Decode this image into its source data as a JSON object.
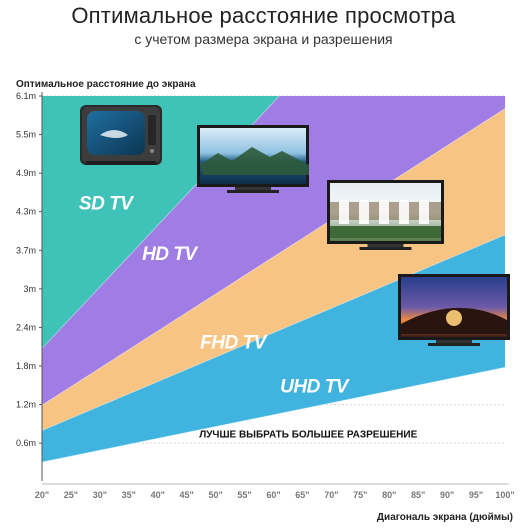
{
  "header": {
    "title": "Оптимальное расстояние просмотра",
    "subtitle": "с учетом размера экрана и разрешения"
  },
  "chart_data": {
    "type": "area",
    "title": "Оптимальное расстояние просмотра",
    "subtitle": "с учетом размера экрана и разрешения",
    "ylabel": "Оптимальное расстояние до экрана",
    "xlabel": "Диагональ экрана (дюймы)",
    "x_ticks": [
      "20\"",
      "25\"",
      "30\"",
      "35\"",
      "40\"",
      "45\"",
      "50\"",
      "55\"",
      "60\"",
      "65\"",
      "70\"",
      "75\"",
      "80\"",
      "85\"",
      "90\"",
      "95\"",
      "100\""
    ],
    "y_ticks": [
      "0.6m",
      "1.2m",
      "1.8m",
      "2.4m",
      "3m",
      "3.7m",
      "4.3m",
      "4.9m",
      "5.5m",
      "6.1m"
    ],
    "xlim": [
      20,
      100
    ],
    "ylim": [
      0,
      6.1
    ],
    "grid": true,
    "boundaries": [
      {
        "name": "bottom",
        "points": [
          [
            20,
            0.3
          ],
          [
            100,
            1.8
          ]
        ]
      },
      {
        "name": "UHD / FHD",
        "points": [
          [
            20,
            0.8
          ],
          [
            100,
            3.9
          ]
        ]
      },
      {
        "name": "FHD / HD",
        "points": [
          [
            20,
            1.2
          ],
          [
            100,
            5.9
          ]
        ]
      },
      {
        "name": "HD / SD",
        "points": [
          [
            20,
            2.1
          ],
          [
            61,
            6.1
          ]
        ]
      }
    ],
    "series": [
      {
        "name": "SD TV",
        "color": "#3fc2b8",
        "label_pos": [
          31,
          4.3
        ]
      },
      {
        "name": "HD TV",
        "color": "#a07de4",
        "label_pos": [
          42,
          3.5
        ]
      },
      {
        "name": "FHD TV",
        "color": "#f8c483",
        "label_pos": [
          53,
          2.1
        ]
      },
      {
        "name": "UHD TV",
        "color": "#41b3df",
        "label_pos": [
          67,
          1.4
        ]
      }
    ],
    "annotation": "ЛУЧШЕ  ВЫБРАТЬ БОЛЬШЕЕ РАЗРЕШЕНИЕ",
    "annotation_pos": [
      66,
      0.75
    ]
  },
  "tvs": [
    {
      "name": "crt-tv-icon",
      "type": "crt"
    },
    {
      "name": "hd-tv-icon",
      "type": "flat",
      "scene": "lake"
    },
    {
      "name": "fhd-tv-icon",
      "type": "flat",
      "scene": "waterfall"
    },
    {
      "name": "uhd-tv-icon",
      "type": "flat",
      "scene": "sunset"
    }
  ]
}
